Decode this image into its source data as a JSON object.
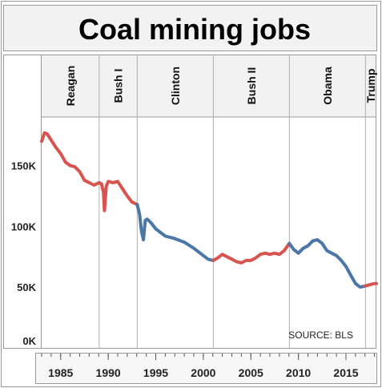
{
  "title": "Coal mining jobs",
  "source": "SOURCE: BLS",
  "colors": {
    "republican": "#d9534f",
    "democrat": "#4a76a8",
    "header_bg": "#f2f2f2",
    "divider": "#b0b0b0"
  },
  "chart_data": {
    "type": "line",
    "title": "Coal mining jobs",
    "xlabel": "",
    "ylabel": "",
    "xlim": [
      1983,
      2018.2
    ],
    "ylim": [
      0,
      190000
    ],
    "y_ticks": [
      {
        "value": 0,
        "label": "0K"
      },
      {
        "value": 50000,
        "label": "50K"
      },
      {
        "value": 100000,
        "label": "100K"
      },
      {
        "value": 150000,
        "label": "150K"
      }
    ],
    "x_ticks": [
      {
        "value": 1985,
        "label": "1985"
      },
      {
        "value": 1990,
        "label": "1990"
      },
      {
        "value": 1995,
        "label": "1995"
      },
      {
        "value": 2000,
        "label": "2000"
      },
      {
        "value": 2005,
        "label": "2005"
      },
      {
        "value": 2010,
        "label": "2010"
      },
      {
        "value": 2015,
        "label": "2015"
      }
    ],
    "presidents": [
      {
        "name": "Reagan",
        "start": 1983,
        "end": 1989.05,
        "party": "R"
      },
      {
        "name": "Bush I",
        "start": 1989.05,
        "end": 1993.05,
        "party": "R"
      },
      {
        "name": "Clinton",
        "start": 1993.05,
        "end": 2001.05,
        "party": "D"
      },
      {
        "name": "Bush II",
        "start": 2001.05,
        "end": 2009.05,
        "party": "R"
      },
      {
        "name": "Obama",
        "start": 2009.05,
        "end": 2017.05,
        "party": "D"
      },
      {
        "name": "Trump",
        "start": 2017.05,
        "end": 2018.2,
        "party": "R"
      }
    ],
    "series": [
      {
        "party": "R",
        "x": [
          1983.0,
          1983.3,
          1983.6,
          1984.0,
          1984.5,
          1985.0,
          1985.5,
          1986.0,
          1986.5,
          1987.0,
          1987.5,
          1988.0,
          1988.5,
          1989.05
        ],
        "y": [
          170000,
          177000,
          176000,
          171000,
          165000,
          160000,
          153000,
          150000,
          149000,
          145000,
          138000,
          136000,
          134000,
          136000
        ]
      },
      {
        "party": "R",
        "x": [
          1989.05,
          1989.3,
          1989.5,
          1989.6,
          1989.8,
          1990.0,
          1990.5,
          1991.0,
          1991.5,
          1992.0,
          1992.5,
          1993.05
        ],
        "y": [
          136000,
          135000,
          128000,
          113000,
          133000,
          137000,
          136000,
          137000,
          131000,
          125000,
          120000,
          118000
        ]
      },
      {
        "party": "D",
        "x": [
          1993.05,
          1993.3,
          1993.5,
          1993.7,
          1993.9,
          1994.1,
          1994.5,
          1995.0,
          1995.5,
          1996.0,
          1997.0,
          1998.0,
          1999.0,
          2000.0,
          2000.5,
          2001.05
        ],
        "y": [
          118000,
          110000,
          96000,
          89000,
          105000,
          106000,
          103000,
          98000,
          95000,
          92000,
          90000,
          87000,
          82000,
          76000,
          73000,
          72000
        ]
      },
      {
        "party": "R",
        "x": [
          2001.05,
          2001.5,
          2002.0,
          2002.5,
          2003.0,
          2003.5,
          2004.0,
          2004.5,
          2005.0,
          2005.5,
          2006.0,
          2006.5,
          2007.0,
          2007.5,
          2008.0,
          2008.5,
          2009.05
        ],
        "y": [
          72000,
          74000,
          77000,
          75000,
          73000,
          71000,
          70000,
          72000,
          72000,
          74000,
          77000,
          78000,
          77000,
          78000,
          77000,
          80000,
          86000
        ]
      },
      {
        "party": "D",
        "x": [
          2009.05,
          2009.5,
          2010.0,
          2010.5,
          2011.0,
          2011.5,
          2012.0,
          2012.5,
          2013.0,
          2013.5,
          2014.0,
          2014.5,
          2015.0,
          2015.5,
          2016.0,
          2016.5,
          2017.05
        ],
        "y": [
          86000,
          81000,
          78000,
          82000,
          84000,
          88000,
          89000,
          86000,
          80000,
          78000,
          76000,
          72000,
          67000,
          60000,
          53000,
          50000,
          51000
        ]
      },
      {
        "party": "R",
        "x": [
          2017.05,
          2017.5,
          2018.0,
          2018.2
        ],
        "y": [
          51000,
          52000,
          53000,
          53000
        ]
      }
    ]
  }
}
